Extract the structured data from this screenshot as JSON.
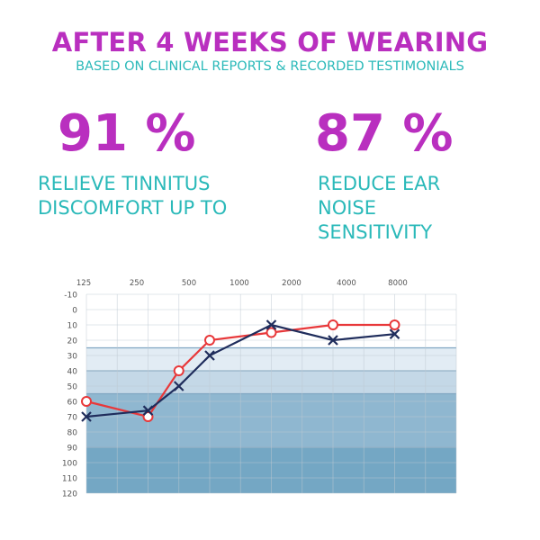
{
  "header": {
    "title": "AFTER 4 WEEKS OF WEARING",
    "subtitle": "BASED ON CLINICAL REPORTS & RECORDED TESTIMONIALS"
  },
  "stats": [
    {
      "value": "91 %",
      "description": "RELIEVE TINNITUS DISCOMFORT UP TO"
    },
    {
      "value": "87 %",
      "description": "REDUCE EAR NOISE SENSITIVITY"
    }
  ],
  "colors": {
    "accent": "#b92fbf",
    "secondary": "#2ab9b9",
    "red_series": "#e8383a",
    "blue_series": "#1f2d5c"
  },
  "chart_data": {
    "type": "line",
    "title": "",
    "xlabel": "",
    "ylabel": "",
    "x_tick_labels": [
      "125",
      "250",
      "500",
      "1000",
      "2000",
      "4000",
      "8000"
    ],
    "y_tick_labels": [
      "-10",
      "0",
      "10",
      "20",
      "30",
      "40",
      "50",
      "60",
      "70",
      "80",
      "90",
      "100",
      "110",
      "120"
    ],
    "ylim": [
      -10,
      120
    ],
    "y_inverted": true,
    "grid": true,
    "shaded_bands": [
      {
        "from": 25,
        "to": 40,
        "color": "#e2ecf4"
      },
      {
        "from": 40,
        "to": 55,
        "color": "#c4d8e7"
      },
      {
        "from": 55,
        "to": 90,
        "color": "#8fb7d0"
      },
      {
        "from": 90,
        "to": 120,
        "color": "#74a7c4"
      }
    ],
    "series": [
      {
        "marker": "circle",
        "color": "#e8383a",
        "x_index": [
          0,
          2,
          3,
          4,
          6,
          8,
          10
        ],
        "values": [
          60,
          70,
          40,
          20,
          15,
          10,
          10
        ]
      },
      {
        "marker": "x",
        "color": "#1f2d5c",
        "x_index": [
          0,
          2,
          3,
          4,
          6,
          8,
          10
        ],
        "values": [
          70,
          66,
          50,
          30,
          10,
          20,
          16
        ]
      }
    ]
  }
}
